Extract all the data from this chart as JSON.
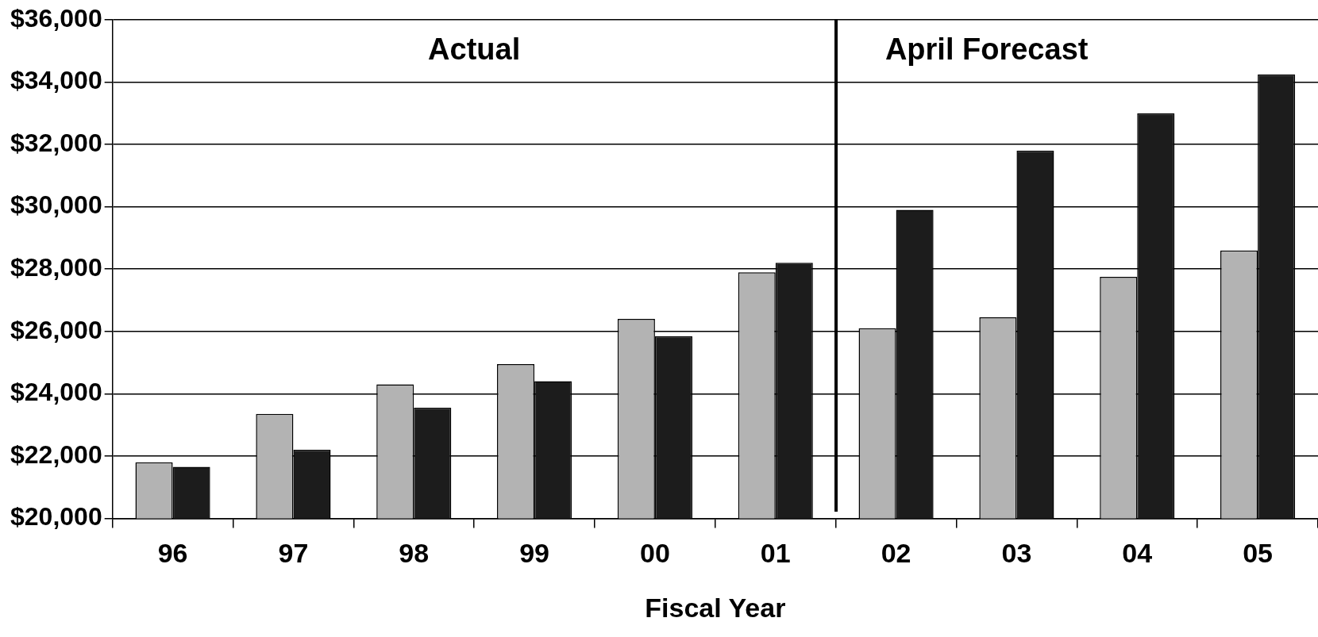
{
  "chart_data": {
    "type": "bar",
    "xlabel": "Fiscal Year",
    "categories": [
      "96",
      "97",
      "98",
      "99",
      "00",
      "01",
      "02",
      "03",
      "04",
      "05"
    ],
    "series": [
      {
        "color": "#b3b3b3",
        "values": [
          21800,
          23350,
          24300,
          24950,
          26400,
          27900,
          26100,
          26450,
          27750,
          28600
        ]
      },
      {
        "color": "#1c1c1c",
        "values": [
          21650,
          22200,
          23550,
          24400,
          25850,
          28200,
          29900,
          31800,
          33000,
          34250
        ]
      }
    ],
    "ylim": [
      20000,
      36000
    ],
    "yticks": [
      {
        "value": 20000,
        "label": "$20,000"
      },
      {
        "value": 22000,
        "label": "$22,000"
      },
      {
        "value": 24000,
        "label": "$24,000"
      },
      {
        "value": 26000,
        "label": "$26,000"
      },
      {
        "value": 28000,
        "label": "$28,000"
      },
      {
        "value": 30000,
        "label": "$30,000"
      },
      {
        "value": 32000,
        "label": "$32,000"
      },
      {
        "value": 34000,
        "label": "$34,000"
      },
      {
        "value": 36000,
        "label": "$36,000"
      }
    ],
    "grid": "y",
    "legend": false,
    "annotations": [
      "Actual",
      "April Forecast"
    ]
  }
}
